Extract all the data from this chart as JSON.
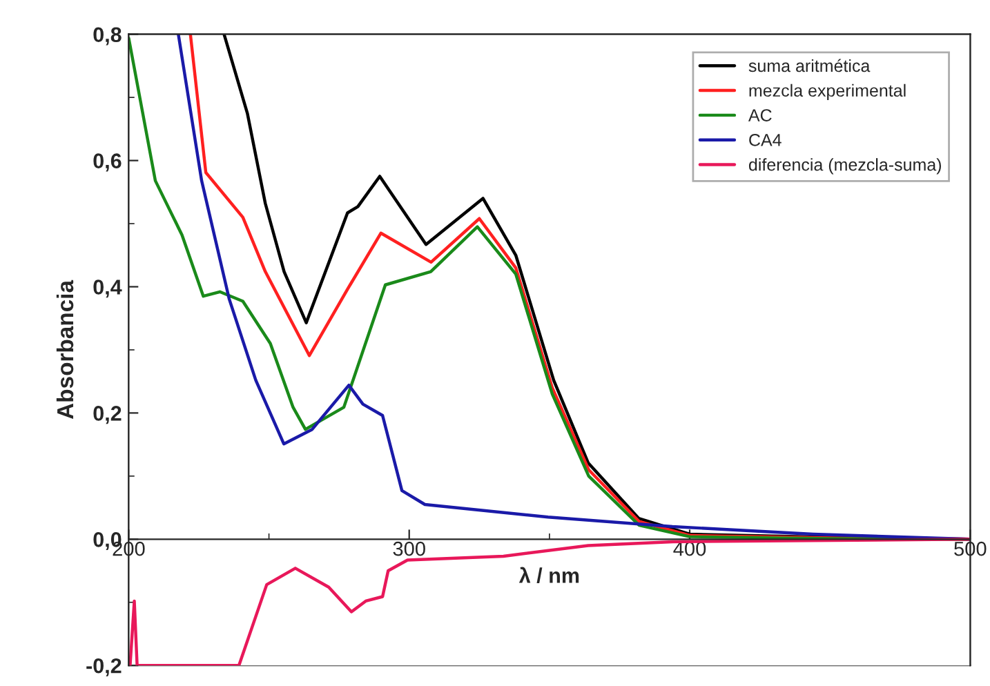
{
  "chart_data": {
    "type": "line",
    "xlabel": "λ / nm",
    "ylabel": "Absorbancia",
    "xlim": [
      200,
      500
    ],
    "xticks": [
      200,
      300,
      400,
      500
    ],
    "ylim": [
      -0.2,
      0.8
    ],
    "yticks": [
      {
        "value": -0.2,
        "label": "-0,2"
      },
      {
        "value": 0.0,
        "label": "0,0"
      },
      {
        "value": 0.2,
        "label": "0,2"
      },
      {
        "value": 0.4,
        "label": "0,4"
      },
      {
        "value": 0.6,
        "label": "0,6"
      },
      {
        "value": 0.8,
        "label": "0,8"
      }
    ],
    "legend": "top right",
    "grid": false,
    "line_style": "solid",
    "series": [
      {
        "name": "suma aritmética",
        "color": "#000000",
        "x": [
          234,
          242.3,
          248.7,
          255.4,
          263.3,
          278,
          281.7,
          289.5,
          306,
          326.3,
          338,
          351.5,
          363.8,
          381.8,
          400,
          450,
          500
        ],
        "values": [
          0.8,
          0.675,
          0.532,
          0.424,
          0.343,
          0.517,
          0.527,
          0.575,
          0.467,
          0.54,
          0.45,
          0.252,
          0.121,
          0.033,
          0.008,
          0.003,
          0.0
        ]
      },
      {
        "name": "mezcla experimental",
        "color": "#ff2020",
        "x": [
          222,
          227.5,
          240.7,
          248.7,
          264.4,
          278,
          289.9,
          307.8,
          325,
          338,
          351,
          364,
          382,
          400,
          450,
          500
        ],
        "values": [
          0.8,
          0.581,
          0.51,
          0.424,
          0.291,
          0.396,
          0.485,
          0.439,
          0.508,
          0.43,
          0.24,
          0.11,
          0.028,
          0.006,
          0.002,
          0.0
        ]
      },
      {
        "name": "AC",
        "color": "#1a8a1a",
        "x": [
          200,
          209.5,
          219,
          226.6,
          232.5,
          240.7,
          250.5,
          258.6,
          263,
          276.7,
          291.5,
          307.7,
          324.3,
          338,
          351,
          364,
          382,
          400,
          450,
          500
        ],
        "values": [
          0.794,
          0.568,
          0.482,
          0.385,
          0.392,
          0.377,
          0.31,
          0.209,
          0.174,
          0.209,
          0.403,
          0.424,
          0.495,
          0.42,
          0.23,
          0.1,
          0.022,
          0.004,
          0.001,
          0.0
        ]
      },
      {
        "name": "CA4",
        "color": "#1a1aa8",
        "x": [
          217.7,
          226,
          235.8,
          245.3,
          255.3,
          265.4,
          278.5,
          283.5,
          290.5,
          297.4,
          305.6,
          349.5,
          393.8,
          444,
          500
        ],
        "values": [
          0.8,
          0.568,
          0.381,
          0.252,
          0.151,
          0.174,
          0.244,
          0.214,
          0.196,
          0.077,
          0.055,
          0.035,
          0.02,
          0.008,
          0.0
        ]
      },
      {
        "name": "diferencia (mezcla-suma)",
        "color": "#e8185a",
        "x": [
          200.5,
          202,
          203,
          239.3,
          249.2,
          259.4,
          271.3,
          279.4,
          284.5,
          290.5,
          292.5,
          299.4,
          333.6,
          363.8,
          394,
          500
        ],
        "values": [
          -0.2,
          -0.098,
          -0.2,
          -0.2,
          -0.072,
          -0.046,
          -0.076,
          -0.115,
          -0.098,
          -0.091,
          -0.05,
          -0.033,
          -0.027,
          -0.01,
          -0.004,
          0.0
        ]
      }
    ]
  }
}
